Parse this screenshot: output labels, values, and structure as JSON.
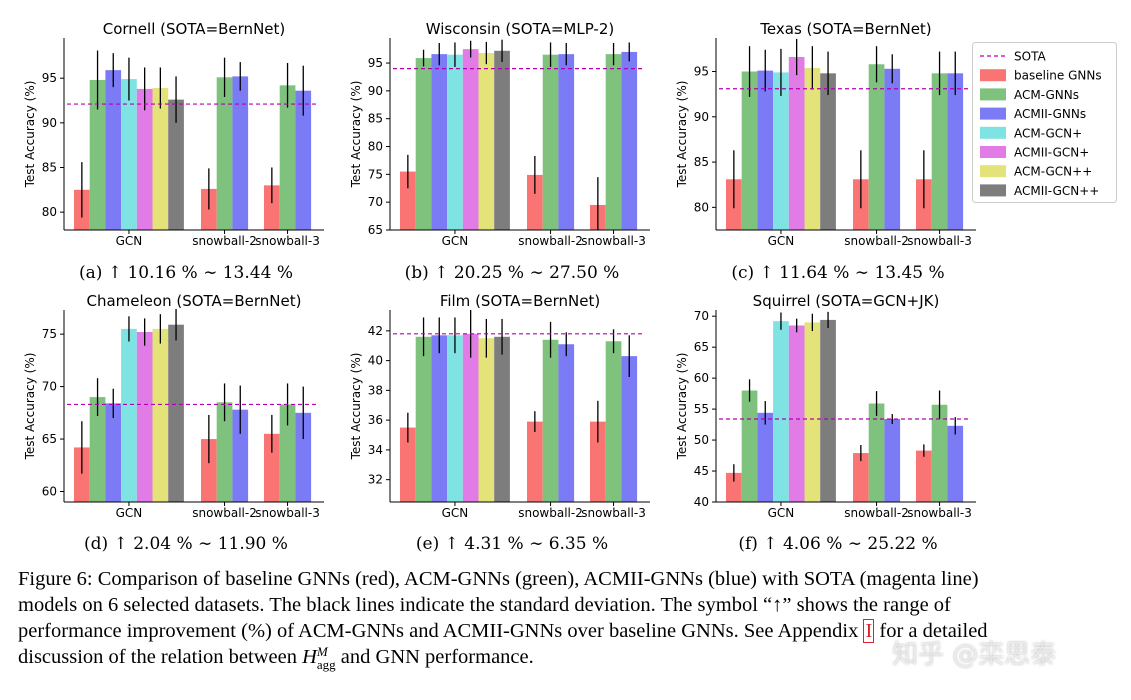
{
  "colors": {
    "baseline": "#fb7474",
    "acm_gnns": "#7ec27e",
    "acmii_gnns": "#7b7bf5",
    "acm_gcn_plus": "#7fe3e3",
    "acmii_gcn_plus": "#e17be6",
    "acm_gcn_pp": "#e3e37a",
    "acmii_gcn_pp": "#7d7d7d",
    "sota": "#b400b4",
    "error": "#000000"
  },
  "legend": {
    "items": [
      {
        "label": "SOTA",
        "color": "#b400b4",
        "kind": "line"
      },
      {
        "label": "baseline GNNs",
        "color": "#fb7474",
        "kind": "box"
      },
      {
        "label": "ACM-GNNs",
        "color": "#7ec27e",
        "kind": "box"
      },
      {
        "label": "ACMII-GNNs",
        "color": "#7b7bf5",
        "kind": "box"
      },
      {
        "label": "ACM-GCN+",
        "color": "#7fe3e3",
        "kind": "box"
      },
      {
        "label": "ACMII-GCN+",
        "color": "#e17be6",
        "kind": "box"
      },
      {
        "label": "ACM-GCN++",
        "color": "#e3e37a",
        "kind": "box"
      },
      {
        "label": "ACMII-GCN++",
        "color": "#7d7d7d",
        "kind": "box"
      }
    ]
  },
  "chart_data": [
    {
      "type": "bar",
      "title": "Cornell (SOTA=BernNet)",
      "ylabel": "Test Accuracy (%)",
      "caption": "(a) ↑ 10.16 % ∼ 13.44 %",
      "ylim": [
        78,
        99.5
      ],
      "yticks": [
        80,
        85,
        90,
        95
      ],
      "sota": 92.1,
      "categories": [
        "GCN",
        "snowball-2",
        "snowball-3"
      ],
      "groups": [
        {
          "category": "GCN",
          "series": [
            "baseline GNNs",
            "ACM-GNNs",
            "ACMII-GNNs",
            "ACM-GCN+",
            "ACMII-GCN+",
            "ACM-GCN++",
            "ACMII-GCN++"
          ],
          "values": [
            82.5,
            94.8,
            95.9,
            94.9,
            93.8,
            93.9,
            92.6
          ],
          "errors": [
            3.1,
            3.3,
            1.9,
            2.4,
            2.4,
            2.3,
            2.6
          ]
        },
        {
          "category": "snowball-2",
          "series": [
            "baseline GNNs",
            "ACM-GNNs",
            "ACMII-GNNs"
          ],
          "values": [
            82.6,
            95.1,
            95.2
          ],
          "errors": [
            2.3,
            2.2,
            1.6
          ]
        },
        {
          "category": "snowball-3",
          "series": [
            "baseline GNNs",
            "ACM-GNNs",
            "ACMII-GNNs"
          ],
          "values": [
            83.0,
            94.2,
            93.6
          ],
          "errors": [
            2.0,
            2.5,
            2.8
          ]
        }
      ]
    },
    {
      "type": "bar",
      "title": "Wisconsin (SOTA=MLP-2)",
      "ylabel": "Test Accuracy (%)",
      "caption": "(b) ↑ 20.25 % ∼ 27.50 %",
      "ylim": [
        65,
        99.5
      ],
      "yticks": [
        65,
        70,
        75,
        80,
        85,
        90,
        95
      ],
      "sota": 94.0,
      "categories": [
        "GCN",
        "snowball-2",
        "snowball-3"
      ],
      "groups": [
        {
          "category": "GCN",
          "series": [
            "baseline GNNs",
            "ACM-GNNs",
            "ACMII-GNNs",
            "ACM-GCN+",
            "ACMII-GCN+",
            "ACM-GCN++",
            "ACMII-GCN++"
          ],
          "values": [
            75.5,
            95.9,
            96.6,
            96.5,
            97.5,
            96.8,
            97.2
          ],
          "errors": [
            3.0,
            1.5,
            2.0,
            2.2,
            1.5,
            2.0,
            2.0
          ]
        },
        {
          "category": "snowball-2",
          "series": [
            "baseline GNNs",
            "ACM-GNNs",
            "ACMII-GNNs"
          ],
          "values": [
            74.9,
            96.5,
            96.6
          ],
          "errors": [
            3.4,
            2.2,
            2.0
          ]
        },
        {
          "category": "snowball-3",
          "series": [
            "baseline GNNs",
            "ACM-GNNs",
            "ACMII-GNNs"
          ],
          "values": [
            69.5,
            96.6,
            97.0
          ],
          "errors": [
            5.0,
            2.0,
            1.7
          ]
        }
      ]
    },
    {
      "type": "bar",
      "title": "Texas (SOTA=BernNet)",
      "ylabel": "Test Accuracy (%)",
      "caption": "(c) ↑ 11.64 % ∼ 13.45 %",
      "ylim": [
        77.5,
        98.7
      ],
      "yticks": [
        80,
        85,
        90,
        95
      ],
      "sota": 93.1,
      "categories": [
        "GCN",
        "snowball-2",
        "snowball-3"
      ],
      "groups": [
        {
          "category": "GCN",
          "series": [
            "baseline GNNs",
            "ACM-GNNs",
            "ACMII-GNNs",
            "ACM-GCN+",
            "ACMII-GCN+",
            "ACM-GCN++",
            "ACMII-GCN++"
          ],
          "values": [
            83.1,
            95.0,
            95.1,
            94.9,
            96.6,
            95.4,
            94.8
          ],
          "errors": [
            3.2,
            2.8,
            2.3,
            2.6,
            2.0,
            2.4,
            2.4
          ]
        },
        {
          "category": "snowball-2",
          "series": [
            "baseline GNNs",
            "ACM-GNNs",
            "ACMII-GNNs"
          ],
          "values": [
            83.1,
            95.8,
            95.3
          ],
          "errors": [
            3.2,
            2.0,
            1.6
          ]
        },
        {
          "category": "snowball-3",
          "series": [
            "baseline GNNs",
            "ACM-GNNs",
            "ACMII-GNNs"
          ],
          "values": [
            83.1,
            94.8,
            94.8
          ],
          "errors": [
            3.2,
            2.4,
            2.4
          ]
        }
      ]
    },
    {
      "type": "bar",
      "title": "Chameleon (SOTA=BernNet)",
      "ylabel": "Test Accuracy (%)",
      "caption": "(d) ↑ 2.04 % ∼ 11.90 %",
      "ylim": [
        59,
        77.3
      ],
      "yticks": [
        60,
        65,
        70,
        75
      ],
      "sota": 68.3,
      "categories": [
        "GCN",
        "snowball-2",
        "snowball-3"
      ],
      "groups": [
        {
          "category": "GCN",
          "series": [
            "baseline GNNs",
            "ACM-GNNs",
            "ACMII-GNNs",
            "ACM-GCN+",
            "ACMII-GCN+",
            "ACM-GCN++",
            "ACMII-GCN++"
          ],
          "values": [
            64.2,
            69.0,
            68.4,
            75.5,
            75.2,
            75.5,
            75.9
          ],
          "errors": [
            2.5,
            1.8,
            1.4,
            1.2,
            1.3,
            1.4,
            1.5
          ]
        },
        {
          "category": "snowball-2",
          "series": [
            "baseline GNNs",
            "ACM-GNNs",
            "ACMII-GNNs"
          ],
          "values": [
            65.0,
            68.5,
            67.8
          ],
          "errors": [
            2.3,
            1.8,
            2.3
          ]
        },
        {
          "category": "snowball-3",
          "series": [
            "baseline GNNs",
            "ACM-GNNs",
            "ACMII-GNNs"
          ],
          "values": [
            65.5,
            68.3,
            67.5
          ],
          "errors": [
            1.8,
            2.0,
            2.5
          ]
        }
      ]
    },
    {
      "type": "bar",
      "title": "Film (SOTA=BernNet)",
      "ylabel": "Test Accuracy (%)",
      "caption": "(e) ↑ 4.31 % ∼ 6.35 %",
      "ylim": [
        30.5,
        43.4
      ],
      "yticks": [
        32,
        34,
        36,
        38,
        40,
        42
      ],
      "sota": 41.8,
      "categories": [
        "GCN",
        "snowball-2",
        "snowball-3"
      ],
      "groups": [
        {
          "category": "GCN",
          "series": [
            "baseline GNNs",
            "ACM-GNNs",
            "ACMII-GNNs",
            "ACM-GCN+",
            "ACMII-GCN+",
            "ACM-GCN++",
            "ACMII-GCN++"
          ],
          "values": [
            35.5,
            41.6,
            41.7,
            41.7,
            41.8,
            41.5,
            41.6
          ],
          "errors": [
            1.0,
            1.3,
            1.2,
            1.2,
            1.6,
            1.3,
            1.2
          ]
        },
        {
          "category": "snowball-2",
          "series": [
            "baseline GNNs",
            "ACM-GNNs",
            "ACMII-GNNs"
          ],
          "values": [
            35.9,
            41.4,
            41.1
          ],
          "errors": [
            0.7,
            1.2,
            0.8
          ]
        },
        {
          "category": "snowball-3",
          "series": [
            "baseline GNNs",
            "ACM-GNNs",
            "ACMII-GNNs"
          ],
          "values": [
            35.9,
            41.3,
            40.3
          ],
          "errors": [
            1.4,
            0.8,
            1.4
          ]
        }
      ]
    },
    {
      "type": "bar",
      "title": "Squirrel (SOTA=GCN+JK)",
      "ylabel": "Test Accuracy (%)",
      "caption": "(f) ↑ 4.06 % ∼ 25.22 %",
      "ylim": [
        40,
        71
      ],
      "yticks": [
        40,
        45,
        50,
        55,
        60,
        65,
        70
      ],
      "sota": 53.4,
      "categories": [
        "GCN",
        "snowball-2",
        "snowball-3"
      ],
      "groups": [
        {
          "category": "GCN",
          "series": [
            "baseline GNNs",
            "ACM-GNNs",
            "ACMII-GNNs",
            "ACM-GCN+",
            "ACMII-GCN+",
            "ACM-GCN++",
            "ACMII-GCN++"
          ],
          "values": [
            44.7,
            58.0,
            54.4,
            69.2,
            68.5,
            69.0,
            69.4
          ],
          "errors": [
            1.4,
            1.8,
            1.9,
            1.4,
            1.1,
            1.4,
            1.3
          ]
        },
        {
          "category": "snowball-2",
          "series": [
            "baseline GNNs",
            "ACM-GNNs",
            "ACMII-GNNs"
          ],
          "values": [
            47.9,
            55.9,
            53.4
          ],
          "errors": [
            1.3,
            2.0,
            0.8
          ]
        },
        {
          "category": "snowball-3",
          "series": [
            "baseline GNNs",
            "ACM-GNNs",
            "ACMII-GNNs"
          ],
          "values": [
            48.3,
            55.7,
            52.3
          ],
          "errors": [
            1.0,
            2.3,
            1.4
          ]
        }
      ]
    }
  ],
  "figure_caption": {
    "part1": "Figure 6: Comparison of baseline GNNs (red), ACM-GNNs (green), ACMII-GNNs (blue) with SOTA (magenta line) models on 6 selected datasets. The black lines indicate the standard deviation. The symbol “↑” shows the range of performance improvement (%) of ACM-GNNs and ACMII-GNNs over baseline GNNs. See Appendix",
    "ref": "I",
    "part2": "for a detailed discussion of the relation between",
    "math_base": "H",
    "math_sup": "M",
    "math_sub": "agg",
    "part3": "and GNN performance."
  },
  "watermark": "知乎 @栾思泰"
}
